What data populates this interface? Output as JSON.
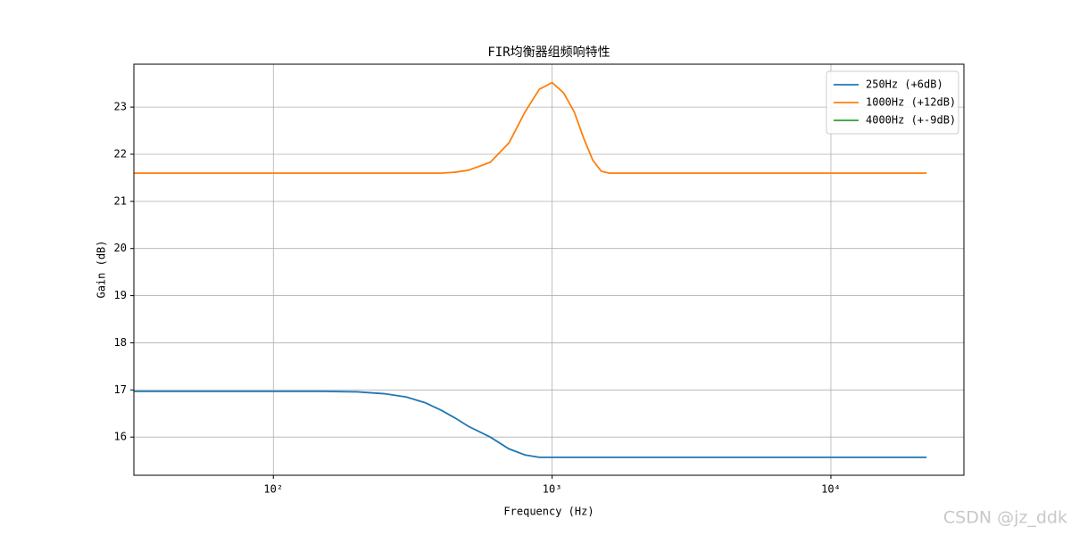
{
  "chart_data": {
    "type": "line",
    "title": "FIR均衡器组频响特性",
    "x_label": "Frequency (Hz)",
    "y_label": "Gain (dB)",
    "x": [
      31.6,
      50,
      100,
      150,
      200,
      250,
      300,
      350,
      400,
      450,
      500,
      600,
      700,
      800,
      900,
      1000,
      1100,
      1200,
      1300,
      1400,
      1500,
      1600,
      1800,
      2000,
      3000,
      5000,
      10000,
      22050
    ],
    "series": [
      {
        "name": "250Hz (+6dB)",
        "color": "#1f77b4",
        "values": [
          16.97,
          16.97,
          16.97,
          16.97,
          16.96,
          16.92,
          16.85,
          16.73,
          16.57,
          16.4,
          16.23,
          16.0,
          15.75,
          15.62,
          15.57,
          15.57,
          15.57,
          15.57,
          15.57,
          15.57,
          15.57,
          15.57,
          15.57,
          15.57,
          15.57,
          15.57,
          15.57,
          15.57
        ]
      },
      {
        "name": "1000Hz (+12dB)",
        "color": "#ff7f0e",
        "values": [
          21.6,
          21.6,
          21.6,
          21.6,
          21.6,
          21.6,
          21.6,
          21.6,
          21.6,
          21.62,
          21.66,
          21.83,
          22.24,
          22.9,
          23.38,
          23.52,
          23.3,
          22.9,
          22.33,
          21.87,
          21.64,
          21.6,
          21.6,
          21.6,
          21.6,
          21.6,
          21.6,
          21.6
        ]
      },
      {
        "name": "4000Hz (+-9dB)",
        "color": "#2ca02c",
        "values": [
          null,
          null,
          null,
          null,
          null,
          null,
          null,
          null,
          null,
          null,
          null,
          null,
          null,
          null,
          null,
          null,
          null,
          null,
          null,
          null,
          null,
          null,
          null,
          null,
          null,
          null,
          null,
          null
        ]
      }
    ],
    "x_scale": "log",
    "xlim": [
      31.6,
      30000
    ],
    "xticks": [
      {
        "value": 100,
        "label": "10²"
      },
      {
        "value": 1000,
        "label": "10³"
      },
      {
        "value": 10000,
        "label": "10⁴"
      }
    ],
    "ylim": [
      15.19,
      23.91
    ],
    "yticks": [
      16,
      17,
      18,
      19,
      20,
      21,
      22,
      23
    ],
    "grid": true,
    "legend": "upper-right",
    "watermark": "CSDN @jz_ddk"
  }
}
